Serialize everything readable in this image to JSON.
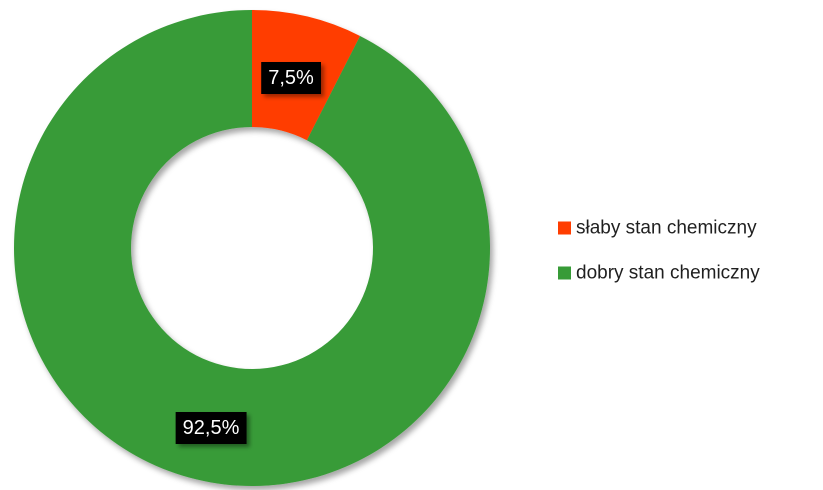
{
  "chart_data": {
    "type": "pie",
    "variant": "donut",
    "categories": [
      "słaby stan chemiczny",
      "dobry stan chemiczny"
    ],
    "values": [
      7.5,
      92.5
    ],
    "labels": [
      "7,5%",
      "92,5%"
    ],
    "colors": [
      "#ff3d00",
      "#379b37"
    ],
    "legend": {
      "position": "right",
      "items": [
        "słaby stan chemiczny",
        "dobry stan chemiczny"
      ]
    },
    "title": ""
  }
}
